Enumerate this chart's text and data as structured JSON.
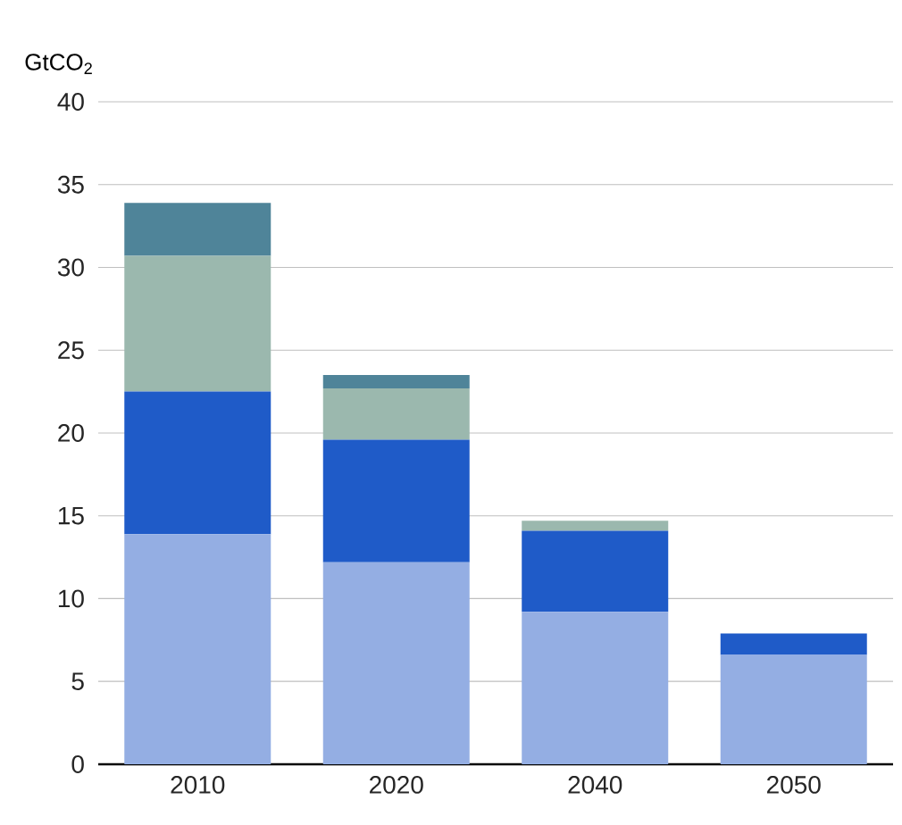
{
  "chart_data": {
    "type": "bar",
    "stacked": true,
    "ylabel": "GtCO$_{2}$",
    "categories": [
      "2010",
      "2020",
      "2040",
      "2050"
    ],
    "series": [
      {
        "color": "#94aee3",
        "values": [
          13.9,
          12.2,
          9.2,
          6.6
        ]
      },
      {
        "color": "#1f5bc8",
        "values": [
          8.6,
          7.4,
          4.9,
          1.3
        ]
      },
      {
        "color": "#9bb8ae",
        "values": [
          8.2,
          3.1,
          0.6,
          null
        ]
      },
      {
        "color": "#4f8499",
        "values": [
          3.2,
          0.8,
          null,
          null
        ]
      }
    ],
    "ylim": [
      0,
      40
    ],
    "yticks": [
      0,
      5,
      10,
      15,
      20,
      25,
      30,
      35,
      40
    ],
    "grid": "y"
  }
}
